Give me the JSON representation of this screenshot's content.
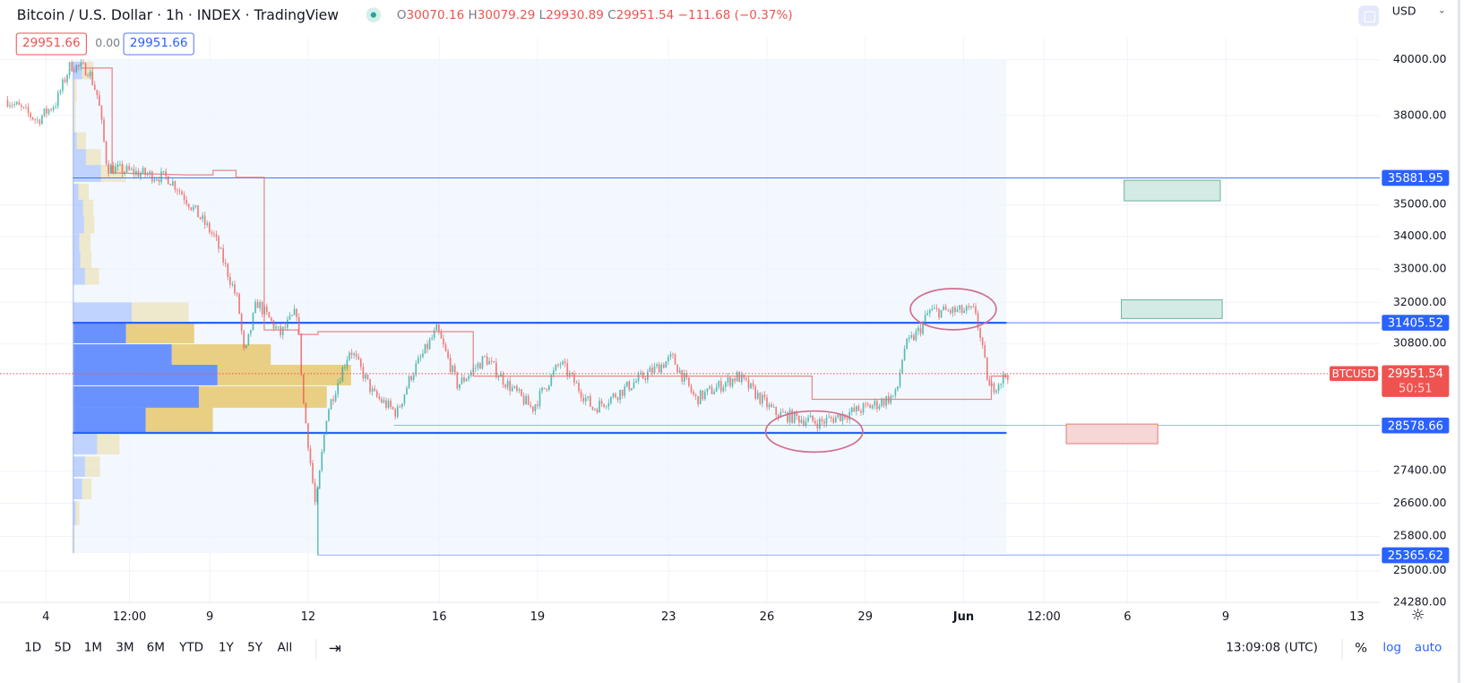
{
  "header": {
    "title": "Bitcoin / U.S. Dollar · 1h · INDEX · TradingView",
    "ohlc": {
      "o_label": "O",
      "o": "30070.16",
      "h_label": "H",
      "h": "30079.29",
      "l_label": "L",
      "l": "29930.89",
      "c_label": "C",
      "c": "29951.54",
      "change": "−111.68 (−0.37%)"
    },
    "sell_price": "29951.66",
    "spread": "0.00",
    "buy_price": "29951.66",
    "currency": "USD"
  },
  "colors": {
    "up": "#26a69a",
    "down": "#ef5350",
    "line": "#2962ff",
    "profile_buy": "#2962ff",
    "profile_sell": "#e6c25a",
    "step_line": "#e57373",
    "ellipse": "#d36b91"
  },
  "chart_data": {
    "type": "candlestick",
    "title": "Bitcoin / U.S. Dollar 1h",
    "scale": "log",
    "ylim": [
      24280,
      40000
    ],
    "y_ticks": [
      "40000.00",
      "38000.00",
      "35000.00",
      "34000.00",
      "33000.00",
      "32000.00",
      "30800.00",
      "27400.00",
      "26600.00",
      "25800.00",
      "25000.00",
      "24280.00"
    ],
    "x_unit": "day (May 1 = 1, Jun 1 = 32)",
    "x_ticks": [
      {
        "label": "4",
        "day": 4
      },
      {
        "label": "12:00",
        "day": 6.55
      },
      {
        "label": "9",
        "day": 9
      },
      {
        "label": "12",
        "day": 12
      },
      {
        "label": "16",
        "day": 16
      },
      {
        "label": "19",
        "day": 19
      },
      {
        "label": "23",
        "day": 23
      },
      {
        "label": "26",
        "day": 26
      },
      {
        "label": "29",
        "day": 29
      },
      {
        "label": "Jun",
        "day": 32,
        "bold": true
      },
      {
        "label": "12:00",
        "day": 34.45
      },
      {
        "label": "6",
        "day": 37
      },
      {
        "label": "9",
        "day": 40
      },
      {
        "label": "13",
        "day": 44
      }
    ],
    "price_path": [
      [
        2.83,
        38550
      ],
      [
        3.74,
        37830
      ],
      [
        4.31,
        38460
      ],
      [
        4.74,
        39800
      ],
      [
        5.3,
        39630
      ],
      [
        5.59,
        38620
      ],
      [
        5.87,
        36220
      ],
      [
        7.73,
        35880
      ],
      [
        8.01,
        35570
      ],
      [
        9.15,
        33970
      ],
      [
        9.86,
        32020
      ],
      [
        10.06,
        30410
      ],
      [
        10.43,
        32020
      ],
      [
        11.15,
        31070
      ],
      [
        11.66,
        31740
      ],
      [
        11.86,
        29150
      ],
      [
        12.23,
        26450
      ],
      [
        12.57,
        28900
      ],
      [
        13.28,
        30670
      ],
      [
        13.99,
        29400
      ],
      [
        14.71,
        28900
      ],
      [
        15.13,
        29900
      ],
      [
        15.93,
        31200
      ],
      [
        16.56,
        29650
      ],
      [
        17.41,
        30410
      ],
      [
        17.98,
        29770
      ],
      [
        18.84,
        29020
      ],
      [
        19.69,
        30280
      ],
      [
        20.69,
        29020
      ],
      [
        21.4,
        29400
      ],
      [
        23.11,
        30410
      ],
      [
        23.82,
        29270
      ],
      [
        25.11,
        29900
      ],
      [
        26.25,
        28900
      ],
      [
        27.61,
        28650
      ],
      [
        29.38,
        29150
      ],
      [
        29.95,
        29400
      ],
      [
        30.18,
        30670
      ],
      [
        30.66,
        31200
      ],
      [
        30.95,
        31740
      ],
      [
        32.37,
        31740
      ],
      [
        32.51,
        30940
      ],
      [
        32.8,
        29520
      ],
      [
        33.37,
        29980
      ]
    ],
    "step_line": [
      [
        5.1,
        39700
      ],
      [
        6.02,
        39700
      ],
      [
        6.02,
        36050
      ],
      [
        8.3,
        35980
      ],
      [
        9.1,
        35980
      ],
      [
        9.1,
        36130
      ],
      [
        9.8,
        36130
      ],
      [
        9.8,
        35900
      ],
      [
        10.66,
        35900
      ],
      [
        10.66,
        31200
      ],
      [
        11.7,
        31200
      ],
      [
        11.7,
        31070
      ],
      [
        12.3,
        31070
      ],
      [
        12.3,
        31150
      ],
      [
        17.04,
        31150
      ],
      [
        17.04,
        29900
      ],
      [
        27.38,
        29900
      ],
      [
        27.38,
        29270
      ],
      [
        32.85,
        29270
      ],
      [
        32.85,
        29900
      ],
      [
        33.4,
        29900
      ]
    ],
    "volume_profile": [
      {
        "low": 39290,
        "high": 39930,
        "buy": 10,
        "sell": 12,
        "value_area": false
      },
      {
        "low": 38460,
        "high": 39290,
        "buy": 0,
        "sell": 4,
        "value_area": false
      },
      {
        "low": 37420,
        "high": 38460,
        "buy": 0,
        "sell": 3,
        "value_area": false
      },
      {
        "low": 36845,
        "high": 37420,
        "buy": 4,
        "sell": 10,
        "value_area": false
      },
      {
        "low": 36310,
        "high": 36845,
        "buy": 14,
        "sell": 16,
        "value_area": false
      },
      {
        "low": 35750,
        "high": 36310,
        "buy": 30,
        "sell": 27,
        "value_area": false
      },
      {
        "low": 35170,
        "high": 35690,
        "buy": 6,
        "sell": 11,
        "value_area": false
      },
      {
        "low": 34630,
        "high": 35170,
        "buy": 11,
        "sell": 11,
        "value_area": false
      },
      {
        "low": 34100,
        "high": 34630,
        "buy": 12,
        "sell": 11,
        "value_area": false
      },
      {
        "low": 33545,
        "high": 34100,
        "buy": 7,
        "sell": 12,
        "value_area": false
      },
      {
        "low": 33030,
        "high": 33545,
        "buy": 8,
        "sell": 12,
        "value_area": false
      },
      {
        "low": 32525,
        "high": 33030,
        "buy": 13,
        "sell": 15,
        "value_area": false
      },
      {
        "low": 31430,
        "high": 32000,
        "buy": 63,
        "sell": 61,
        "value_area": false
      },
      {
        "low": 30820,
        "high": 31405,
        "buy": 57,
        "sell": 73,
        "value_area": true
      },
      {
        "low": 30214,
        "high": 30790,
        "buy": 106,
        "sell": 106,
        "value_area": true
      },
      {
        "low": 29650,
        "high": 30214,
        "buy": 155,
        "sell": 143,
        "value_area": true
      },
      {
        "low": 29044,
        "high": 29625,
        "buy": 135,
        "sell": 137,
        "value_area": true
      },
      {
        "low": 28400,
        "high": 29044,
        "buy": 78,
        "sell": 72,
        "value_area": true
      },
      {
        "low": 27824,
        "high": 28350,
        "buy": 26,
        "sell": 24,
        "value_area": false
      },
      {
        "low": 27257,
        "high": 27770,
        "buy": 13,
        "sell": 16,
        "value_area": false
      },
      {
        "low": 26700,
        "high": 27210,
        "buy": 10,
        "sell": 10,
        "value_area": false
      },
      {
        "low": 26070,
        "high": 26650,
        "buy": 3,
        "sell": 4,
        "value_area": false
      },
      {
        "low": 25400,
        "high": 26070,
        "buy": 1,
        "sell": 1,
        "value_area": false
      }
    ],
    "price_lines": [
      {
        "value": 35881.95,
        "label": "35881.95"
      },
      {
        "value": 31405.52,
        "label": "31405.52"
      },
      {
        "value": 28578.66,
        "label": "28578.66"
      },
      {
        "value": 25365.62,
        "label": "25365.62"
      }
    ],
    "value_area_low": 28380,
    "last_price": {
      "symbol": "BTCUSD",
      "value": 29951.54,
      "label": "29951.54",
      "countdown": "50:51"
    }
  },
  "bottom_bar": {
    "ranges": [
      "1D",
      "5D",
      "1M",
      "3M",
      "6M",
      "YTD",
      "1Y",
      "5Y",
      "All"
    ],
    "clock": "13:09:08 (UTC)",
    "percent": "%",
    "log": "log",
    "auto": "auto"
  }
}
